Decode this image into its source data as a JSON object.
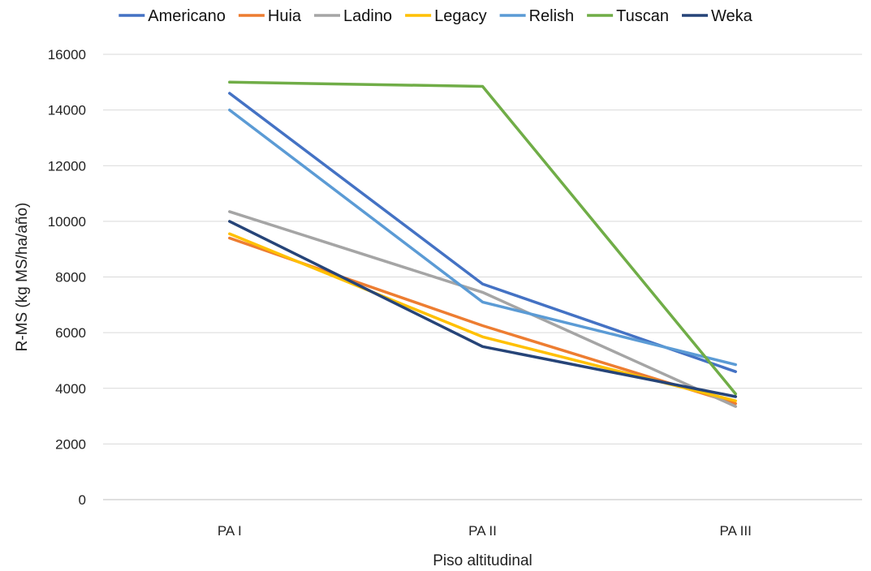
{
  "chart_data": {
    "type": "line",
    "title": "",
    "xlabel": "Piso altitudinal",
    "ylabel": "R-MS (kg MS/ha/año)",
    "categories": [
      "PA I",
      "PA II",
      "PA III"
    ],
    "ylim": [
      0,
      16000
    ],
    "yticks": [
      0,
      2000,
      4000,
      6000,
      8000,
      10000,
      12000,
      14000,
      16000
    ],
    "grid": true,
    "legend_position": "top",
    "series": [
      {
        "name": "Americano",
        "color": "#4472C4",
        "values": [
          14600,
          7750,
          4600
        ]
      },
      {
        "name": "Huia",
        "color": "#ED7D31",
        "values": [
          9400,
          6250,
          3450
        ]
      },
      {
        "name": "Ladino",
        "color": "#A5A5A5",
        "values": [
          10350,
          7450,
          3350
        ]
      },
      {
        "name": "Legacy",
        "color": "#FFC000",
        "values": [
          9550,
          5850,
          3550
        ]
      },
      {
        "name": "Relish",
        "color": "#5B9BD5",
        "values": [
          14000,
          7100,
          4850
        ]
      },
      {
        "name": "Tuscan",
        "color": "#70AD47",
        "values": [
          15000,
          14850,
          3800
        ]
      },
      {
        "name": "Weka",
        "color": "#264478",
        "values": [
          10000,
          5500,
          3700
        ]
      }
    ]
  }
}
